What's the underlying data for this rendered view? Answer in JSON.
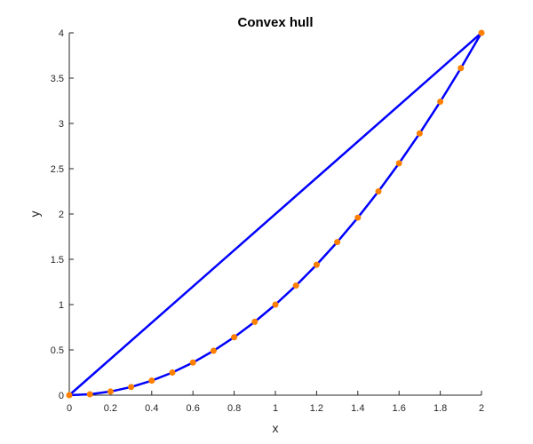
{
  "chart_data": {
    "type": "line",
    "title": "Convex hull",
    "xlabel": "x",
    "ylabel": "y",
    "xlim": [
      0,
      2
    ],
    "ylim": [
      0,
      4
    ],
    "xticks": [
      0,
      0.2,
      0.4,
      0.6,
      0.8,
      1,
      1.2,
      1.4,
      1.6,
      1.8,
      2
    ],
    "xtick_labels": [
      "0",
      "0.2",
      "0.4",
      "0.6",
      "0.8",
      "1",
      "1.2",
      "1.4",
      "1.6",
      "1.8",
      "2"
    ],
    "yticks": [
      0,
      0.5,
      1,
      1.5,
      2,
      2.5,
      3,
      3.5,
      4
    ],
    "ytick_labels": [
      "0",
      "0.5",
      "1",
      "1.5",
      "2",
      "2.5",
      "3",
      "3.5",
      "4"
    ],
    "grid": false,
    "series": [
      {
        "kind": "line",
        "color": "#0000ff",
        "x": [
          0,
          0.1,
          0.2,
          0.3,
          0.4,
          0.5,
          0.6,
          0.7,
          0.8,
          0.9,
          1.0,
          1.1,
          1.2,
          1.3,
          1.4,
          1.5,
          1.6,
          1.7,
          1.8,
          1.9,
          2.0,
          0
        ],
        "y": [
          0,
          0.01,
          0.04,
          0.09,
          0.16,
          0.25,
          0.36,
          0.49,
          0.64,
          0.81,
          1.0,
          1.21,
          1.44,
          1.69,
          1.96,
          2.25,
          2.56,
          2.89,
          3.24,
          3.61,
          4.0,
          0
        ]
      },
      {
        "kind": "points",
        "color": "#ff8000",
        "x": [
          0,
          0.1,
          0.2,
          0.3,
          0.4,
          0.5,
          0.6,
          0.7,
          0.8,
          0.9,
          1.0,
          1.1,
          1.2,
          1.3,
          1.4,
          1.5,
          1.6,
          1.7,
          1.8,
          1.9,
          2.0
        ],
        "y": [
          0,
          0.01,
          0.04,
          0.09,
          0.16,
          0.25,
          0.36,
          0.49,
          0.64,
          0.81,
          1.0,
          1.21,
          1.44,
          1.69,
          1.96,
          2.25,
          2.56,
          2.89,
          3.24,
          3.61,
          4.0
        ]
      }
    ]
  }
}
